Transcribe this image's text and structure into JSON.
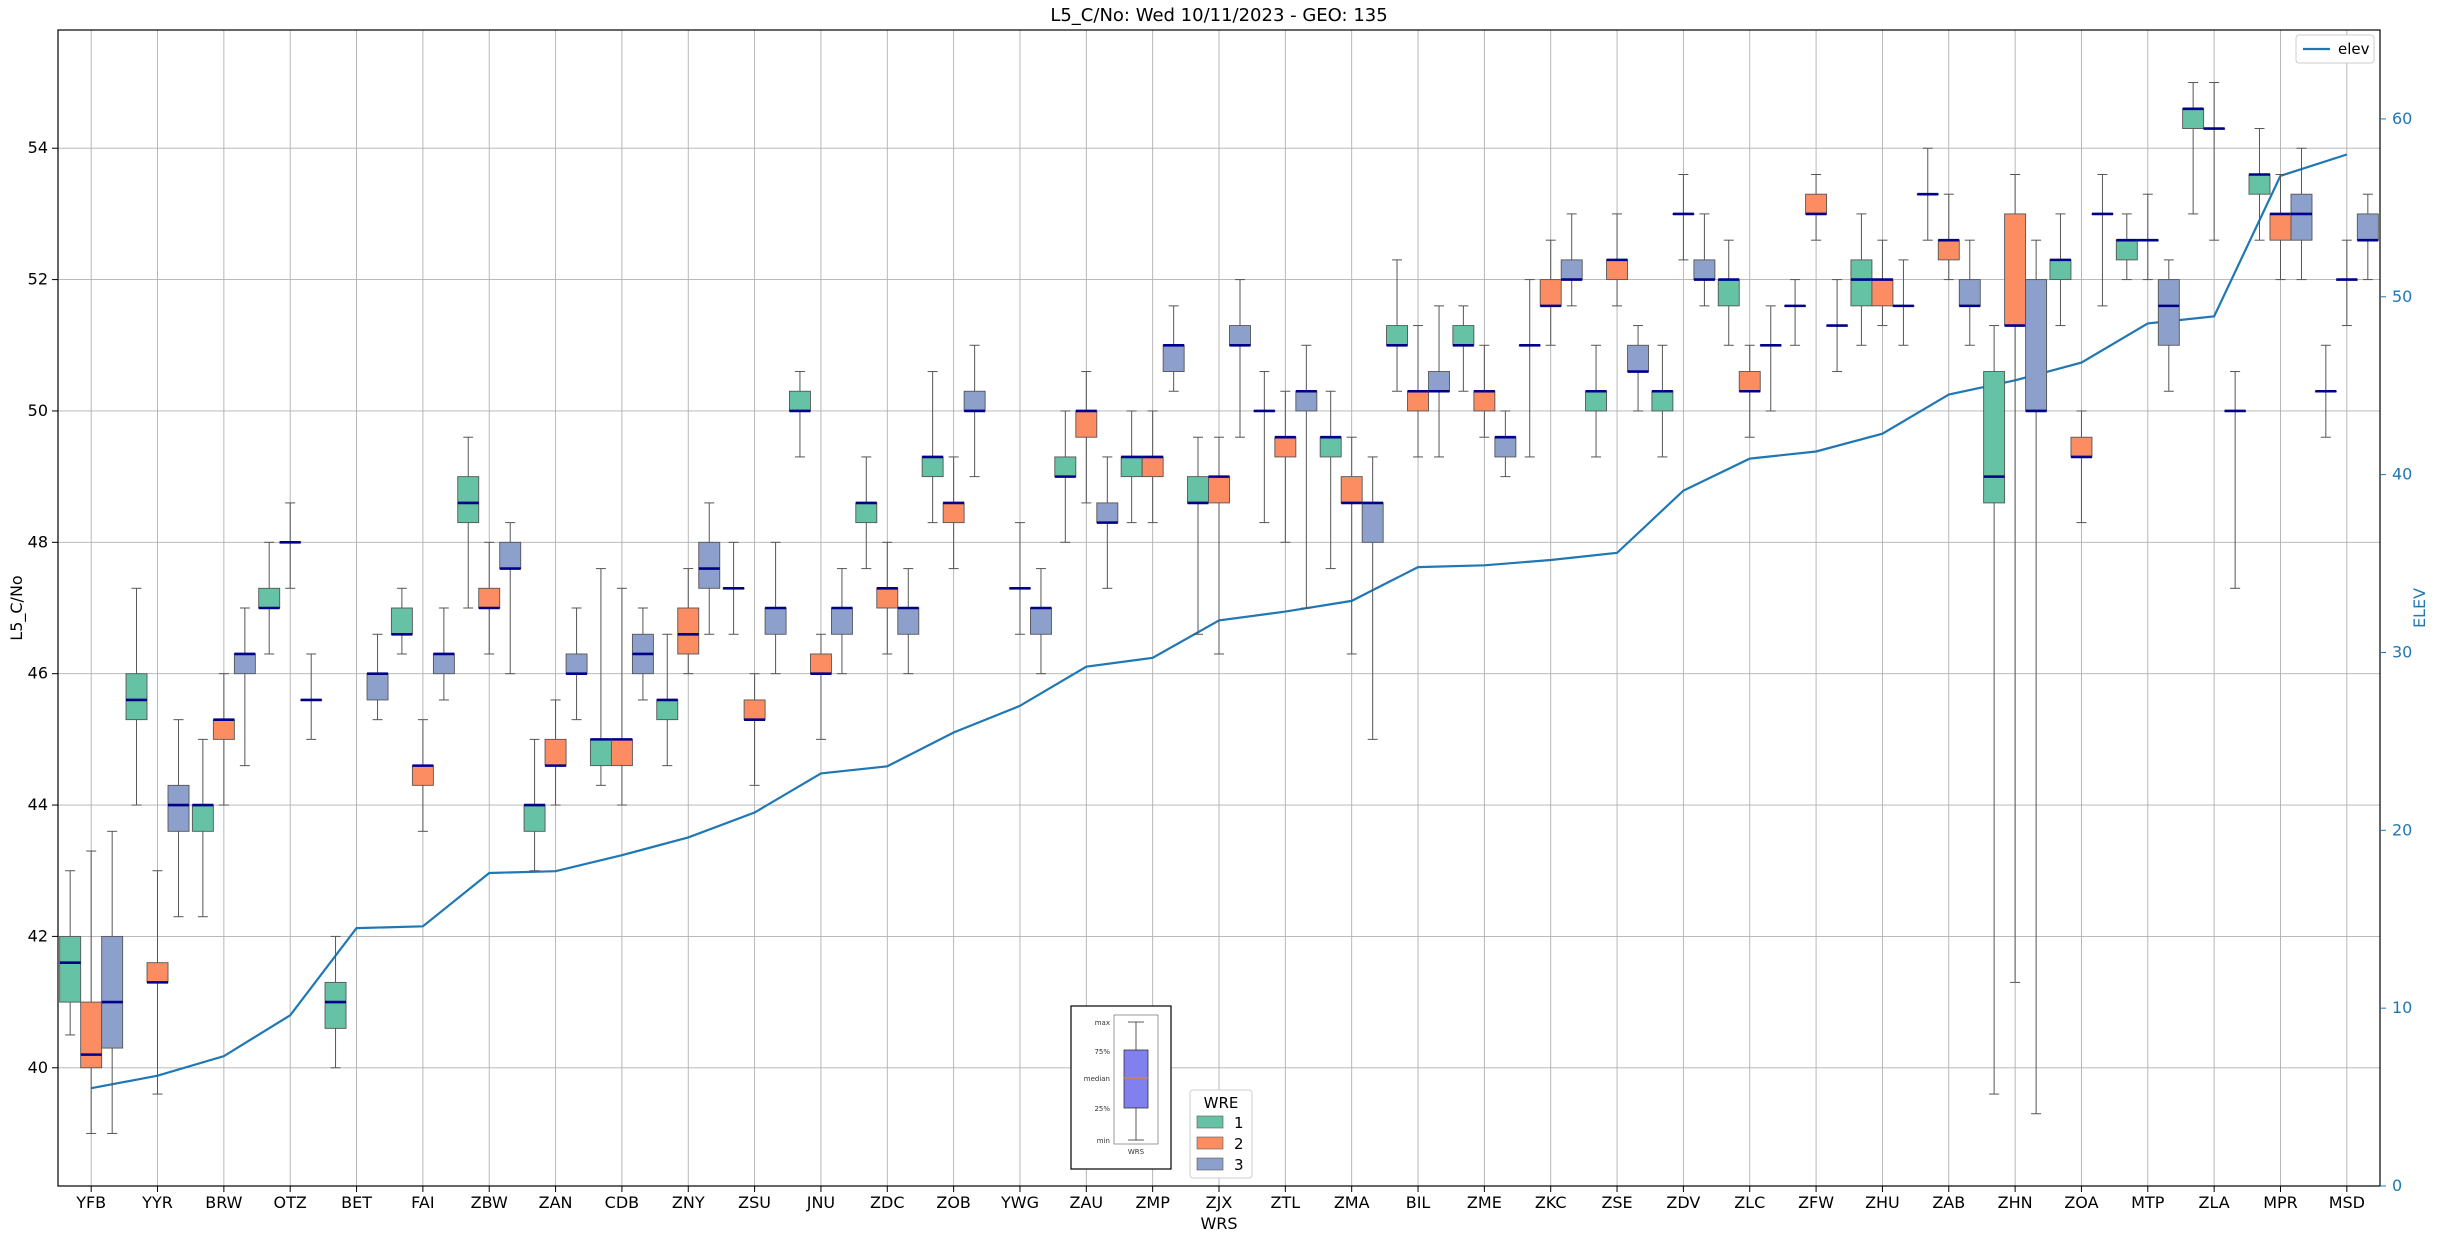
{
  "chart_data": {
    "type": "box",
    "title": "L5_C/No: Wed 10/11/2023 - GEO: 135",
    "xlabel": "WRS",
    "ylabel": "L5_C/No",
    "y2label": "ELEV",
    "ylim": [
      38.2,
      55.8
    ],
    "y2lim": [
      0,
      65
    ],
    "yticks": [
      40,
      42,
      44,
      46,
      48,
      50,
      52,
      54
    ],
    "y2ticks": [
      0,
      10,
      20,
      30,
      40,
      50,
      60
    ],
    "grid": true,
    "categories": [
      "YFB",
      "YYR",
      "BRW",
      "OTZ",
      "BET",
      "FAI",
      "ZBW",
      "ZAN",
      "CDB",
      "ZNY",
      "ZSU",
      "JNU",
      "ZDC",
      "ZOB",
      "YWG",
      "ZAU",
      "ZMP",
      "ZJX",
      "ZTL",
      "ZMA",
      "BIL",
      "ZME",
      "ZKC",
      "ZSE",
      "ZDV",
      "ZLC",
      "ZFW",
      "ZHU",
      "ZAB",
      "ZHN",
      "ZOA",
      "MTP",
      "ZLA",
      "MPR",
      "MSD"
    ],
    "legend_title": "WRE",
    "legend_position": "bottom-center",
    "series_colors": {
      "1": "#66c2a5",
      "2": "#fc8d62",
      "3": "#8da0cb"
    },
    "median_color": "#00008b",
    "elev_color": "#1f77b4",
    "elev_legend": "elev",
    "elev_legend_position": "top-right",
    "boxes": [
      {
        "c": "YFB",
        "w": 1,
        "min": 40.5,
        "q1": 41.0,
        "med": 41.6,
        "q3": 42.0,
        "max": 43.0
      },
      {
        "c": "YFB",
        "w": 2,
        "min": 39.0,
        "q1": 40.0,
        "med": 40.2,
        "q3": 41.0,
        "max": 43.3
      },
      {
        "c": "YFB",
        "w": 3,
        "min": 39.0,
        "q1": 40.3,
        "med": 41.0,
        "q3": 42.0,
        "max": 43.6
      },
      {
        "c": "YYR",
        "w": 1,
        "min": 44.0,
        "q1": 45.3,
        "med": 45.6,
        "q3": 46.0,
        "max": 47.3
      },
      {
        "c": "YYR",
        "w": 2,
        "min": 39.6,
        "q1": 41.3,
        "med": 41.3,
        "q3": 41.6,
        "max": 43.0
      },
      {
        "c": "YYR",
        "w": 3,
        "min": 42.3,
        "q1": 43.6,
        "med": 44.0,
        "q3": 44.3,
        "max": 45.3
      },
      {
        "c": "BRW",
        "w": 1,
        "min": 42.3,
        "q1": 43.6,
        "med": 44.0,
        "q3": 44.0,
        "max": 45.0
      },
      {
        "c": "BRW",
        "w": 2,
        "min": 44.0,
        "q1": 45.0,
        "med": 45.3,
        "q3": 45.3,
        "max": 46.0
      },
      {
        "c": "BRW",
        "w": 3,
        "min": 44.6,
        "q1": 46.0,
        "med": 46.3,
        "q3": 46.3,
        "max": 47.0
      },
      {
        "c": "OTZ",
        "w": 1,
        "min": 46.3,
        "q1": 47.0,
        "med": 47.0,
        "q3": 47.3,
        "max": 48.0
      },
      {
        "c": "OTZ",
        "w": 2,
        "min": 47.3,
        "q1": 48.0,
        "med": 48.0,
        "q3": 48.0,
        "max": 48.6
      },
      {
        "c": "OTZ",
        "w": 3,
        "min": 45.0,
        "q1": 45.6,
        "med": 45.6,
        "q3": 45.6,
        "max": 46.3
      },
      {
        "c": "BET",
        "w": 1,
        "min": 40.0,
        "q1": 40.6,
        "med": 41.0,
        "q3": 41.3,
        "max": 42.0
      },
      {
        "c": "BET",
        "w": 3,
        "min": 45.3,
        "q1": 45.6,
        "med": 46.0,
        "q3": 46.0,
        "max": 46.6
      },
      {
        "c": "FAI",
        "w": 1,
        "min": 46.3,
        "q1": 46.6,
        "med": 46.6,
        "q3": 47.0,
        "max": 47.3
      },
      {
        "c": "FAI",
        "w": 2,
        "min": 43.6,
        "q1": 44.3,
        "med": 44.6,
        "q3": 44.6,
        "max": 45.3
      },
      {
        "c": "FAI",
        "w": 3,
        "min": 45.6,
        "q1": 46.0,
        "med": 46.3,
        "q3": 46.3,
        "max": 47.0
      },
      {
        "c": "ZBW",
        "w": 1,
        "min": 47.0,
        "q1": 48.3,
        "med": 48.6,
        "q3": 49.0,
        "max": 49.6
      },
      {
        "c": "ZBW",
        "w": 2,
        "min": 46.3,
        "q1": 47.0,
        "med": 47.0,
        "q3": 47.3,
        "max": 48.0
      },
      {
        "c": "ZBW",
        "w": 3,
        "min": 46.0,
        "q1": 47.6,
        "med": 47.6,
        "q3": 48.0,
        "max": 48.3
      },
      {
        "c": "ZAN",
        "w": 1,
        "min": 43.0,
        "q1": 43.6,
        "med": 44.0,
        "q3": 44.0,
        "max": 45.0
      },
      {
        "c": "ZAN",
        "w": 2,
        "min": 44.0,
        "q1": 44.6,
        "med": 44.6,
        "q3": 45.0,
        "max": 45.6
      },
      {
        "c": "ZAN",
        "w": 3,
        "min": 45.3,
        "q1": 46.0,
        "med": 46.0,
        "q3": 46.3,
        "max": 47.0
      },
      {
        "c": "CDB",
        "w": 1,
        "min": 44.3,
        "q1": 44.6,
        "med": 45.0,
        "q3": 45.0,
        "max": 47.6
      },
      {
        "c": "CDB",
        "w": 2,
        "min": 44.0,
        "q1": 44.6,
        "med": 45.0,
        "q3": 45.0,
        "max": 47.3
      },
      {
        "c": "CDB",
        "w": 3,
        "min": 45.6,
        "q1": 46.0,
        "med": 46.3,
        "q3": 46.6,
        "max": 47.0
      },
      {
        "c": "ZNY",
        "w": 1,
        "min": 44.6,
        "q1": 45.3,
        "med": 45.6,
        "q3": 45.6,
        "max": 46.6
      },
      {
        "c": "ZNY",
        "w": 2,
        "min": 46.0,
        "q1": 46.3,
        "med": 46.6,
        "q3": 47.0,
        "max": 47.6
      },
      {
        "c": "ZNY",
        "w": 3,
        "min": 46.6,
        "q1": 47.3,
        "med": 47.6,
        "q3": 48.0,
        "max": 48.6
      },
      {
        "c": "ZSU",
        "w": 1,
        "min": 46.6,
        "q1": 47.3,
        "med": 47.3,
        "q3": 47.3,
        "max": 48.0
      },
      {
        "c": "ZSU",
        "w": 2,
        "min": 44.3,
        "q1": 45.3,
        "med": 45.3,
        "q3": 45.6,
        "max": 46.0
      },
      {
        "c": "ZSU",
        "w": 3,
        "min": 46.0,
        "q1": 46.6,
        "med": 47.0,
        "q3": 47.0,
        "max": 48.0
      },
      {
        "c": "JNU",
        "w": 1,
        "min": 49.3,
        "q1": 50.0,
        "med": 50.0,
        "q3": 50.3,
        "max": 50.6
      },
      {
        "c": "JNU",
        "w": 2,
        "min": 45.0,
        "q1": 46.0,
        "med": 46.0,
        "q3": 46.3,
        "max": 46.6
      },
      {
        "c": "JNU",
        "w": 3,
        "min": 46.0,
        "q1": 46.6,
        "med": 47.0,
        "q3": 47.0,
        "max": 47.6
      },
      {
        "c": "ZDC",
        "w": 1,
        "min": 47.6,
        "q1": 48.3,
        "med": 48.6,
        "q3": 48.6,
        "max": 49.3
      },
      {
        "c": "ZDC",
        "w": 2,
        "min": 46.3,
        "q1": 47.0,
        "med": 47.3,
        "q3": 47.3,
        "max": 48.0
      },
      {
        "c": "ZDC",
        "w": 3,
        "min": 46.0,
        "q1": 46.6,
        "med": 47.0,
        "q3": 47.0,
        "max": 47.6
      },
      {
        "c": "ZOB",
        "w": 1,
        "min": 48.3,
        "q1": 49.0,
        "med": 49.3,
        "q3": 49.3,
        "max": 50.6
      },
      {
        "c": "ZOB",
        "w": 2,
        "min": 47.6,
        "q1": 48.3,
        "med": 48.6,
        "q3": 48.6,
        "max": 49.3
      },
      {
        "c": "ZOB",
        "w": 3,
        "min": 49.0,
        "q1": 50.0,
        "med": 50.0,
        "q3": 50.3,
        "max": 51.0
      },
      {
        "c": "YWG",
        "w": 2,
        "min": 46.6,
        "q1": 47.3,
        "med": 47.3,
        "q3": 47.3,
        "max": 48.3
      },
      {
        "c": "YWG",
        "w": 3,
        "min": 46.0,
        "q1": 46.6,
        "med": 47.0,
        "q3": 47.0,
        "max": 47.6
      },
      {
        "c": "ZAU",
        "w": 1,
        "min": 48.0,
        "q1": 49.0,
        "med": 49.0,
        "q3": 49.3,
        "max": 50.0
      },
      {
        "c": "ZAU",
        "w": 2,
        "min": 48.6,
        "q1": 49.6,
        "med": 50.0,
        "q3": 50.0,
        "max": 50.6
      },
      {
        "c": "ZAU",
        "w": 3,
        "min": 47.3,
        "q1": 48.3,
        "med": 48.3,
        "q3": 48.6,
        "max": 49.3
      },
      {
        "c": "ZMP",
        "w": 1,
        "min": 48.3,
        "q1": 49.0,
        "med": 49.3,
        "q3": 49.3,
        "max": 50.0
      },
      {
        "c": "ZMP",
        "w": 2,
        "min": 48.3,
        "q1": 49.0,
        "med": 49.3,
        "q3": 49.3,
        "max": 50.0
      },
      {
        "c": "ZMP",
        "w": 3,
        "min": 50.3,
        "q1": 50.6,
        "med": 51.0,
        "q3": 51.0,
        "max": 51.6
      },
      {
        "c": "ZJX",
        "w": 1,
        "min": 46.6,
        "q1": 48.6,
        "med": 48.6,
        "q3": 49.0,
        "max": 49.6
      },
      {
        "c": "ZJX",
        "w": 2,
        "min": 46.3,
        "q1": 48.6,
        "med": 49.0,
        "q3": 49.0,
        "max": 49.6
      },
      {
        "c": "ZJX",
        "w": 3,
        "min": 49.6,
        "q1": 51.0,
        "med": 51.0,
        "q3": 51.3,
        "max": 52.0
      },
      {
        "c": "ZTL",
        "w": 1,
        "min": 48.3,
        "q1": 50.0,
        "med": 50.0,
        "q3": 50.0,
        "max": 50.6
      },
      {
        "c": "ZTL",
        "w": 2,
        "min": 48.0,
        "q1": 49.3,
        "med": 49.6,
        "q3": 49.6,
        "max": 50.3
      },
      {
        "c": "ZTL",
        "w": 3,
        "min": 47.0,
        "q1": 50.0,
        "med": 50.3,
        "q3": 50.3,
        "max": 51.0
      },
      {
        "c": "ZMA",
        "w": 1,
        "min": 47.6,
        "q1": 49.3,
        "med": 49.6,
        "q3": 49.6,
        "max": 50.3
      },
      {
        "c": "ZMA",
        "w": 2,
        "min": 46.3,
        "q1": 48.6,
        "med": 48.6,
        "q3": 49.0,
        "max": 49.6
      },
      {
        "c": "ZMA",
        "w": 3,
        "min": 45.0,
        "q1": 48.0,
        "med": 48.6,
        "q3": 48.6,
        "max": 49.3
      },
      {
        "c": "BIL",
        "w": 1,
        "min": 50.3,
        "q1": 51.0,
        "med": 51.0,
        "q3": 51.3,
        "max": 52.3
      },
      {
        "c": "BIL",
        "w": 2,
        "min": 49.3,
        "q1": 50.0,
        "med": 50.3,
        "q3": 50.3,
        "max": 51.3
      },
      {
        "c": "BIL",
        "w": 3,
        "min": 49.3,
        "q1": 50.3,
        "med": 50.3,
        "q3": 50.6,
        "max": 51.6
      },
      {
        "c": "ZME",
        "w": 1,
        "min": 50.3,
        "q1": 51.0,
        "med": 51.0,
        "q3": 51.3,
        "max": 51.6
      },
      {
        "c": "ZME",
        "w": 2,
        "min": 49.6,
        "q1": 50.0,
        "med": 50.3,
        "q3": 50.3,
        "max": 51.0
      },
      {
        "c": "ZME",
        "w": 3,
        "min": 49.0,
        "q1": 49.3,
        "med": 49.6,
        "q3": 49.6,
        "max": 50.0
      },
      {
        "c": "ZKC",
        "w": 1,
        "min": 49.3,
        "q1": 51.0,
        "med": 51.0,
        "q3": 51.0,
        "max": 52.0
      },
      {
        "c": "ZKC",
        "w": 2,
        "min": 51.0,
        "q1": 51.6,
        "med": 51.6,
        "q3": 52.0,
        "max": 52.6
      },
      {
        "c": "ZKC",
        "w": 3,
        "min": 51.6,
        "q1": 52.0,
        "med": 52.0,
        "q3": 52.3,
        "max": 53.0
      },
      {
        "c": "ZSE",
        "w": 1,
        "min": 49.3,
        "q1": 50.0,
        "med": 50.3,
        "q3": 50.3,
        "max": 51.0
      },
      {
        "c": "ZSE",
        "w": 2,
        "min": 51.6,
        "q1": 52.0,
        "med": 52.3,
        "q3": 52.3,
        "max": 53.0
      },
      {
        "c": "ZSE",
        "w": 3,
        "min": 50.0,
        "q1": 50.6,
        "med": 50.6,
        "q3": 51.0,
        "max": 51.3
      },
      {
        "c": "ZDV",
        "w": 1,
        "min": 49.3,
        "q1": 50.0,
        "med": 50.3,
        "q3": 50.3,
        "max": 51.0
      },
      {
        "c": "ZDV",
        "w": 2,
        "min": 52.3,
        "q1": 53.0,
        "med": 53.0,
        "q3": 53.0,
        "max": 53.6
      },
      {
        "c": "ZDV",
        "w": 3,
        "min": 51.6,
        "q1": 52.0,
        "med": 52.0,
        "q3": 52.3,
        "max": 53.0
      },
      {
        "c": "ZLC",
        "w": 1,
        "min": 51.0,
        "q1": 51.6,
        "med": 52.0,
        "q3": 52.0,
        "max": 52.6
      },
      {
        "c": "ZLC",
        "w": 2,
        "min": 49.6,
        "q1": 50.3,
        "med": 50.3,
        "q3": 50.6,
        "max": 51.0
      },
      {
        "c": "ZLC",
        "w": 3,
        "min": 50.0,
        "q1": 51.0,
        "med": 51.0,
        "q3": 51.0,
        "max": 51.6
      },
      {
        "c": "ZFW",
        "w": 1,
        "min": 51.0,
        "q1": 51.6,
        "med": 51.6,
        "q3": 51.6,
        "max": 52.0
      },
      {
        "c": "ZFW",
        "w": 2,
        "min": 52.6,
        "q1": 53.0,
        "med": 53.0,
        "q3": 53.3,
        "max": 53.6
      },
      {
        "c": "ZFW",
        "w": 3,
        "min": 50.6,
        "q1": 51.3,
        "med": 51.3,
        "q3": 51.3,
        "max": 52.0
      },
      {
        "c": "ZHU",
        "w": 1,
        "min": 51.0,
        "q1": 51.6,
        "med": 52.0,
        "q3": 52.3,
        "max": 53.0
      },
      {
        "c": "ZHU",
        "w": 2,
        "min": 51.3,
        "q1": 51.6,
        "med": 52.0,
        "q3": 52.0,
        "max": 52.6
      },
      {
        "c": "ZHU",
        "w": 3,
        "min": 51.0,
        "q1": 51.6,
        "med": 51.6,
        "q3": 51.6,
        "max": 52.3
      },
      {
        "c": "ZAB",
        "w": 1,
        "min": 52.6,
        "q1": 53.3,
        "med": 53.3,
        "q3": 53.3,
        "max": 54.0
      },
      {
        "c": "ZAB",
        "w": 2,
        "min": 52.0,
        "q1": 52.3,
        "med": 52.6,
        "q3": 52.6,
        "max": 53.3
      },
      {
        "c": "ZAB",
        "w": 3,
        "min": 51.0,
        "q1": 51.6,
        "med": 51.6,
        "q3": 52.0,
        "max": 52.6
      },
      {
        "c": "ZHN",
        "w": 1,
        "min": 39.6,
        "q1": 48.6,
        "med": 49.0,
        "q3": 50.6,
        "max": 51.3
      },
      {
        "c": "ZHN",
        "w": 2,
        "min": 41.3,
        "q1": 51.3,
        "med": 51.3,
        "q3": 53.0,
        "max": 53.6
      },
      {
        "c": "ZHN",
        "w": 3,
        "min": 39.3,
        "q1": 50.0,
        "med": 50.0,
        "q3": 52.0,
        "max": 52.6
      },
      {
        "c": "ZOA",
        "w": 1,
        "min": 51.3,
        "q1": 52.0,
        "med": 52.3,
        "q3": 52.3,
        "max": 53.0
      },
      {
        "c": "ZOA",
        "w": 2,
        "min": 48.3,
        "q1": 49.3,
        "med": 49.3,
        "q3": 49.6,
        "max": 50.0
      },
      {
        "c": "ZOA",
        "w": 3,
        "min": 51.6,
        "q1": 53.0,
        "med": 53.0,
        "q3": 53.0,
        "max": 53.6
      },
      {
        "c": "MTP",
        "w": 1,
        "min": 52.0,
        "q1": 52.3,
        "med": 52.6,
        "q3": 52.6,
        "max": 53.0
      },
      {
        "c": "MTP",
        "w": 2,
        "min": 52.0,
        "q1": 52.6,
        "med": 52.6,
        "q3": 52.6,
        "max": 53.3
      },
      {
        "c": "MTP",
        "w": 3,
        "min": 50.3,
        "q1": 51.0,
        "med": 51.6,
        "q3": 52.0,
        "max": 52.3
      },
      {
        "c": "ZLA",
        "w": 1,
        "min": 53.0,
        "q1": 54.3,
        "med": 54.6,
        "q3": 54.6,
        "max": 55.0
      },
      {
        "c": "ZLA",
        "w": 2,
        "min": 52.6,
        "q1": 54.3,
        "med": 54.3,
        "q3": 54.3,
        "max": 55.0
      },
      {
        "c": "ZLA",
        "w": 3,
        "min": 47.3,
        "q1": 50.0,
        "med": 50.0,
        "q3": 50.0,
        "max": 50.6
      },
      {
        "c": "MPR",
        "w": 1,
        "min": 52.6,
        "q1": 53.3,
        "med": 53.6,
        "q3": 53.6,
        "max": 54.3
      },
      {
        "c": "MPR",
        "w": 2,
        "min": 52.0,
        "q1": 52.6,
        "med": 53.0,
        "q3": 53.0,
        "max": 53.6
      },
      {
        "c": "MPR",
        "w": 3,
        "min": 52.0,
        "q1": 52.6,
        "med": 53.0,
        "q3": 53.3,
        "max": 54.0
      },
      {
        "c": "MSD",
        "w": 1,
        "min": 49.6,
        "q1": 50.3,
        "med": 50.3,
        "q3": 50.3,
        "max": 51.0
      },
      {
        "c": "MSD",
        "w": 2,
        "min": 51.3,
        "q1": 52.0,
        "med": 52.0,
        "q3": 52.0,
        "max": 52.6
      },
      {
        "c": "MSD",
        "w": 3,
        "min": 52.0,
        "q1": 52.6,
        "med": 52.6,
        "q3": 53.0,
        "max": 53.3
      }
    ],
    "elev": [
      5.5,
      6.2,
      7.3,
      9.6,
      14.5,
      14.6,
      17.6,
      17.7,
      18.6,
      19.6,
      21.0,
      23.2,
      23.6,
      25.5,
      27.0,
      29.2,
      29.7,
      31.8,
      32.3,
      32.9,
      34.8,
      34.9,
      35.2,
      35.6,
      39.1,
      40.9,
      41.3,
      42.3,
      44.5,
      45.3,
      46.3,
      48.5,
      48.9,
      56.8,
      58.0
    ],
    "inset": {
      "labels": [
        "max",
        "75%",
        "median",
        "25%",
        "min"
      ],
      "caption": "WRS"
    },
    "legend_entries": [
      "1",
      "2",
      "3"
    ]
  }
}
